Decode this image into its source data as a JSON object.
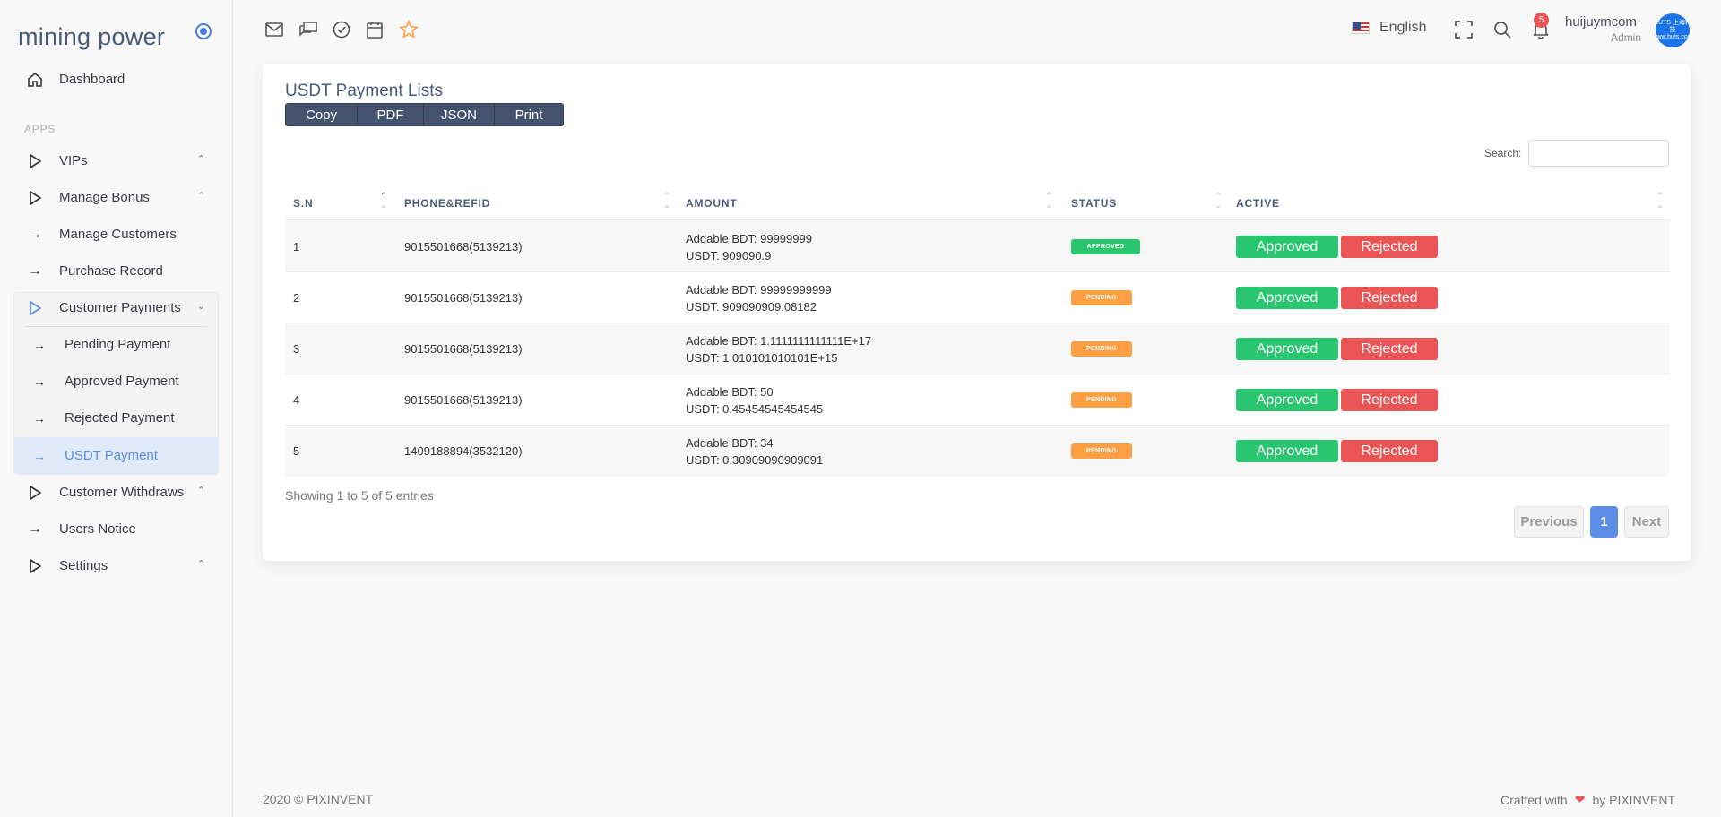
{
  "brand": {
    "name": "mining power"
  },
  "sidebar": {
    "dashboard": "Dashboard",
    "apps_label": "APPS",
    "items": [
      {
        "label": "VIPs"
      },
      {
        "label": "Manage Bonus"
      },
      {
        "label": "Manage Customers"
      },
      {
        "label": "Purchase Record"
      },
      {
        "label": "Customer Payments"
      }
    ],
    "sub_items": [
      {
        "label": "Pending Payment"
      },
      {
        "label": "Approved Payment"
      },
      {
        "label": "Rejected Payment"
      },
      {
        "label": "USDT Payment"
      }
    ],
    "after_items": [
      {
        "label": "Customer Withdraws"
      },
      {
        "label": "Users Notice"
      },
      {
        "label": "Settings"
      }
    ]
  },
  "header": {
    "language": "English",
    "notifications_count": "5",
    "user_name": "huijuymcom",
    "user_role": "Admin",
    "avatar_text": "HUTS 上海科技 www.huts.com"
  },
  "card": {
    "title": "USDT Payment Lists",
    "buttons": [
      "Copy",
      "PDF",
      "JSON",
      "Print"
    ],
    "search_label": "Search:",
    "search_value": ""
  },
  "table": {
    "columns": [
      "S.N",
      "PHONE&REFID",
      "AMOUNT",
      "STATUS",
      "ACTIVE"
    ],
    "rows": [
      {
        "sn": "1",
        "phone": "9015501668(5139213)",
        "bdt": "Addable BDT: 99999999",
        "usdt": "USDT: 909090.9",
        "status": "APPROVED"
      },
      {
        "sn": "2",
        "phone": "9015501668(5139213)",
        "bdt": "Addable BDT: 99999999999",
        "usdt": "USDT: 909090909.08182",
        "status": "PENDING"
      },
      {
        "sn": "3",
        "phone": "9015501668(5139213)",
        "bdt": "Addable BDT: 1.1111111111111E+17",
        "usdt": "USDT: 1.010101010101E+15",
        "status": "PENDING"
      },
      {
        "sn": "4",
        "phone": "9015501668(5139213)",
        "bdt": "Addable BDT: 50",
        "usdt": "USDT: 0.45454545454545",
        "status": "PENDING"
      },
      {
        "sn": "5",
        "phone": "1409188894(3532120)",
        "bdt": "Addable BDT: 34",
        "usdt": "USDT: 0.30909090909091",
        "status": "PENDING"
      }
    ],
    "approve_label": "Approved",
    "reject_label": "Rejected"
  },
  "pagination": {
    "info": "Showing 1 to 5 of 5 entries",
    "previous": "Previous",
    "page": "1",
    "next": "Next"
  },
  "footer": {
    "copyright": "2020 © PIXINVENT",
    "crafted": "Crafted with",
    "by": "by PIXINVENT"
  },
  "colors": {
    "accent": "#5b8ce6",
    "approved": "#28c76f",
    "rejected": "#ea5455",
    "pending": "#ff9f43",
    "button_dark": "#44546e"
  }
}
